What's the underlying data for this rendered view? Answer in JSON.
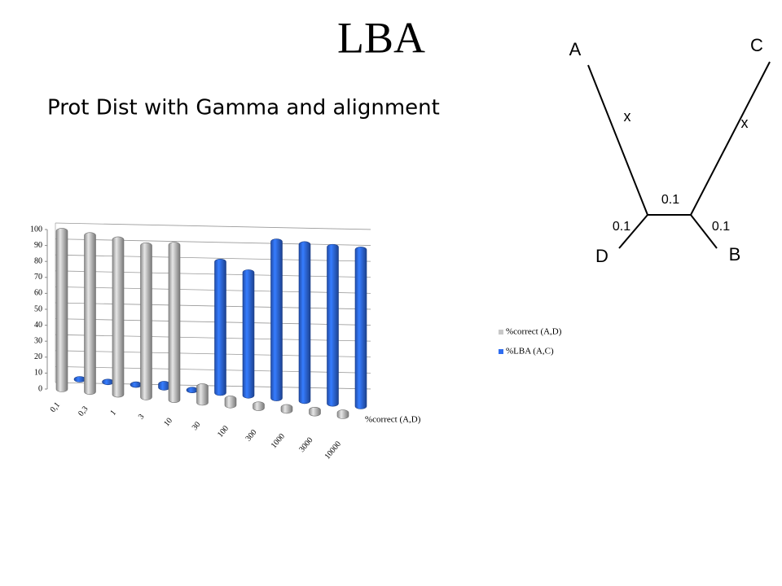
{
  "slide": {
    "title": "LBA",
    "subtitle": "Prot Dist with Gamma and alignment"
  },
  "tree": {
    "labels": {
      "a": "A",
      "c": "C",
      "d": "D",
      "b": "B",
      "x_left": "x",
      "x_right": "x",
      "inner": "0.1",
      "d_branch": "0.1",
      "b_branch": "0.1"
    }
  },
  "chart_data": {
    "type": "bar3d",
    "categories": [
      "0,1",
      "0,3",
      "1",
      "3",
      "10",
      "30",
      "100",
      "300",
      "1000",
      "3000",
      "10000"
    ],
    "series": [
      {
        "name": "%correct (A,D)",
        "color": "#c8c8c8",
        "values": [
          99,
          98,
          97,
          95,
          97,
          10,
          4,
          2,
          2,
          2,
          2
        ]
      },
      {
        "name": "%LBA (A,C)",
        "color": "#2f6df0",
        "values": [
          0,
          0,
          0,
          2,
          0,
          82,
          77,
          98,
          98,
          98,
          98
        ]
      }
    ],
    "depth_label": "%correct (A,D)",
    "ylim": [
      0,
      100
    ],
    "yticks": [
      0,
      10,
      20,
      30,
      40,
      50,
      60,
      70,
      80,
      90,
      100
    ],
    "grid": true,
    "legend": "right"
  }
}
